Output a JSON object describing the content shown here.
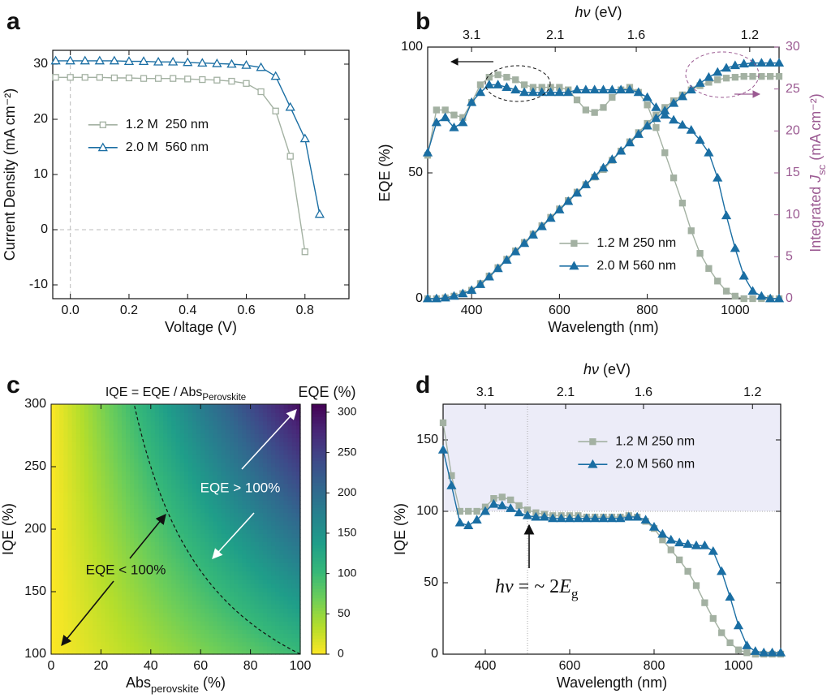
{
  "chart_data": [
    {
      "panel_label": "a",
      "type": "line",
      "xlabel": [
        {
          "text": "Voltage (V)"
        }
      ],
      "ylabel": [
        {
          "text": "Current Density (mA cm⁻²)"
        }
      ],
      "xlim": [
        -0.06,
        0.95
      ],
      "ylim": [
        -12.5,
        32.5
      ],
      "xticks": [
        {
          "value": 0,
          "label": "0.0"
        },
        0.2,
        0.4,
        0.6,
        0.8
      ],
      "yticks": [
        -10,
        0,
        10,
        20,
        30
      ],
      "zero_lines": true,
      "legend_position": "center-left",
      "series": [
        {
          "name": "1.2 M  250 nm",
          "color": "#a3b1a2",
          "marker": "square",
          "filled": false,
          "x": [
            -0.05,
            0,
            0.05,
            0.1,
            0.15,
            0.2,
            0.25,
            0.3,
            0.35,
            0.4,
            0.45,
            0.5,
            0.55,
            0.6,
            0.65,
            0.7,
            0.75,
            0.8
          ],
          "values": [
            27.6,
            27.6,
            27.6,
            27.6,
            27.5,
            27.5,
            27.4,
            27.4,
            27.4,
            27.3,
            27.2,
            27.1,
            26.9,
            26.5,
            25.0,
            21.5,
            13.3,
            -4.0
          ]
        },
        {
          "name": "2.0 M  560 nm",
          "color": "#1a6ea3",
          "marker": "triangle",
          "filled": false,
          "x": [
            -0.05,
            0,
            0.05,
            0.1,
            0.15,
            0.2,
            0.25,
            0.3,
            0.35,
            0.4,
            0.45,
            0.5,
            0.55,
            0.6,
            0.65,
            0.7,
            0.75,
            0.8,
            0.85
          ],
          "values": [
            30.6,
            30.6,
            30.6,
            30.6,
            30.6,
            30.5,
            30.5,
            30.4,
            30.4,
            30.3,
            30.2,
            30.1,
            30.0,
            29.8,
            29.4,
            27.8,
            22.2,
            16.5,
            2.8
          ]
        }
      ]
    },
    {
      "panel_label": "b",
      "type": "line",
      "xlabel": [
        {
          "text": "Wavelength (nm)"
        }
      ],
      "ylabel": [
        {
          "text": "EQE (%)"
        }
      ],
      "y2label": [
        {
          "text": "Integrated "
        },
        {
          "text": "J",
          "italic": true
        },
        {
          "text": "sc",
          "sub": true
        },
        {
          "text": " (mA cm⁻²)"
        }
      ],
      "x2label": [
        {
          "text": "hν",
          "italic": true
        },
        {
          "text": " (eV)"
        }
      ],
      "y2color": "#9b5a92",
      "xlim": [
        300,
        1100
      ],
      "ylim": [
        0,
        100
      ],
      "y2lim": [
        0,
        30
      ],
      "xticks": [
        400,
        600,
        800,
        1000
      ],
      "yticks": [
        0,
        50,
        100
      ],
      "y2ticks": [
        0,
        5,
        10,
        15,
        20,
        25,
        30
      ],
      "x2ticks": [
        3.1,
        2.1,
        1.6,
        1.2
      ],
      "legend_position": "lower-center",
      "x": [
        300,
        320,
        340,
        360,
        380,
        400,
        420,
        440,
        460,
        480,
        500,
        520,
        540,
        560,
        580,
        600,
        620,
        640,
        660,
        680,
        700,
        720,
        740,
        760,
        780,
        800,
        820,
        840,
        860,
        880,
        900,
        920,
        940,
        960,
        980,
        1000,
        1020,
        1040,
        1060,
        1080,
        1100
      ],
      "series": [
        {
          "name": "1.2 M 250 nm",
          "color": "#a3b1a2",
          "marker": "square",
          "filled": true,
          "values": [
            57,
            75,
            75,
            73,
            72,
            78,
            85,
            88,
            89,
            88,
            87,
            85,
            84,
            84,
            84,
            84,
            83,
            79,
            75,
            74,
            76,
            80,
            83,
            84,
            82,
            77,
            68,
            58,
            48,
            38,
            27,
            18,
            12,
            7,
            3,
            1,
            0,
            0,
            0,
            0,
            0
          ]
        },
        {
          "name": "2.0 M 560 nm",
          "color": "#1a6ea3",
          "marker": "triangle",
          "filled": true,
          "values": [
            58,
            70,
            72,
            68,
            70,
            78,
            82,
            85,
            85,
            84,
            83,
            82,
            82,
            82,
            82,
            82,
            82,
            83,
            83,
            83,
            83,
            83,
            83,
            83,
            82,
            80,
            76,
            73,
            71,
            69,
            67,
            63,
            58,
            48,
            33,
            20,
            9,
            3,
            1,
            0,
            0
          ]
        },
        {
          "color": "#a3b1a2",
          "marker": "square",
          "filled": true,
          "axis": "y2",
          "values": [
            0,
            0,
            0.1,
            0.3,
            0.6,
            1.0,
            1.8,
            2.7,
            3.7,
            4.7,
            5.7,
            6.7,
            7.7,
            8.7,
            9.7,
            10.7,
            11.7,
            12.7,
            13.6,
            14.5,
            15.4,
            16.5,
            17.6,
            18.7,
            19.8,
            20.9,
            21.9,
            22.8,
            23.6,
            24.3,
            24.9,
            25.4,
            25.8,
            26.1,
            26.3,
            26.4,
            26.5,
            26.5,
            26.5,
            26.5,
            26.5
          ]
        },
        {
          "color": "#1a6ea3",
          "marker": "triangle",
          "filled": true,
          "axis": "y2",
          "values": [
            0,
            0,
            0.1,
            0.3,
            0.6,
            1.0,
            1.7,
            2.6,
            3.6,
            4.6,
            5.6,
            6.6,
            7.6,
            8.6,
            9.6,
            10.6,
            11.6,
            12.6,
            13.6,
            14.6,
            15.6,
            16.6,
            17.6,
            18.6,
            19.6,
            20.6,
            21.5,
            22.4,
            23.3,
            24.1,
            24.9,
            25.7,
            26.4,
            27.0,
            27.5,
            27.8,
            28.0,
            28.1,
            28.1,
            28.1,
            28.1
          ]
        }
      ]
    },
    {
      "panel_label": "c",
      "type": "heatmap",
      "title": [
        {
          "text": "IQE = EQE / Abs"
        },
        {
          "text": "Perovskite",
          "sub": true
        }
      ],
      "xlabel": [
        {
          "text": "Abs"
        },
        {
          "text": "perovskite",
          "sub": true
        },
        {
          "text": " (%)"
        }
      ],
      "ylabel": [
        {
          "text": "IQE (%)"
        }
      ],
      "colorbar_label": [
        {
          "text": "EQE (%)"
        }
      ],
      "colormap": "viridis_r",
      "xlim": [
        0,
        100
      ],
      "ylim": [
        100,
        300
      ],
      "zlim": [
        0,
        310
      ],
      "xticks": [
        0,
        20,
        40,
        60,
        80,
        100
      ],
      "yticks": [
        100,
        150,
        200,
        250,
        300
      ],
      "zticks": [
        0,
        50,
        100,
        150,
        200,
        250,
        300
      ],
      "contour": 100,
      "annotations": [
        "EQE > 100%",
        "EQE < 100%"
      ]
    },
    {
      "panel_label": "d",
      "type": "line",
      "xlabel": [
        {
          "text": "Wavelength (nm)"
        }
      ],
      "ylabel": [
        {
          "text": "IQE (%)"
        }
      ],
      "x2label": [
        {
          "text": "hν",
          "italic": true
        },
        {
          "text": " (eV)"
        }
      ],
      "xlim": [
        300,
        1100
      ],
      "ylim": [
        0,
        175
      ],
      "xticks": [
        400,
        600,
        800,
        1000
      ],
      "yticks": [
        0,
        50,
        100,
        150
      ],
      "x2ticks": [
        3.1,
        2.1,
        1.6,
        1.2
      ],
      "threshold": 100,
      "marker_wavelength": 500,
      "annotation": [
        {
          "text": "hν",
          "italic": true
        },
        {
          "text": " = ~ 2"
        },
        {
          "text": "E",
          "italic": true
        },
        {
          "text": "g",
          "sub": true
        }
      ],
      "legend_position": "upper-center",
      "x": [
        300,
        320,
        340,
        360,
        380,
        400,
        420,
        440,
        460,
        480,
        500,
        520,
        540,
        560,
        580,
        600,
        620,
        640,
        660,
        680,
        700,
        720,
        740,
        760,
        780,
        800,
        820,
        840,
        860,
        880,
        900,
        920,
        940,
        960,
        980,
        1000,
        1020,
        1040,
        1060,
        1080,
        1100
      ],
      "series": [
        {
          "name": "1.2 M 250 nm",
          "color": "#a3b1a2",
          "marker": "square",
          "filled": true,
          "values": [
            162,
            125,
            100,
            100,
            100,
            103,
            109,
            110,
            108,
            104,
            101,
            99,
            98,
            97,
            97,
            97,
            97,
            96,
            96,
            96,
            96,
            96,
            97,
            96,
            93,
            88,
            80,
            73,
            66,
            58,
            48,
            36,
            25,
            15,
            8,
            3,
            1,
            0,
            0,
            0,
            0
          ]
        },
        {
          "name": "2.0 M 560 nm",
          "color": "#1a6ea3",
          "marker": "triangle",
          "filled": true,
          "values": [
            143,
            118,
            92,
            90,
            94,
            100,
            105,
            104,
            102,
            99,
            97,
            96,
            96,
            95,
            95,
            95,
            95,
            95,
            95,
            95,
            95,
            95,
            96,
            96,
            94,
            89,
            84,
            80,
            78,
            77,
            76,
            76,
            72,
            58,
            40,
            20,
            6,
            2,
            1,
            1,
            1
          ]
        }
      ]
    }
  ]
}
